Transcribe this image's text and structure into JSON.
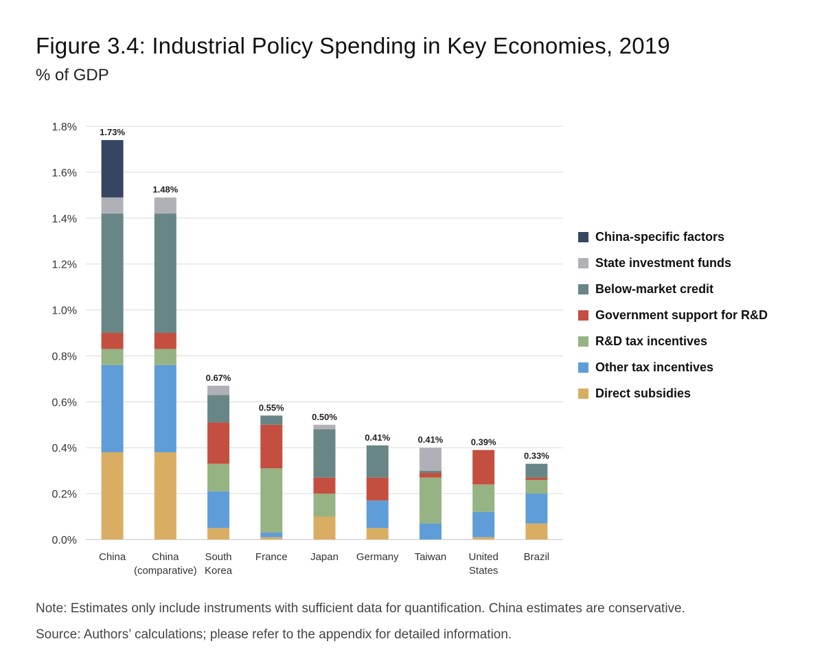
{
  "title": "Figure 3.4: Industrial Policy Spending in Key Economies, 2019",
  "subtitle": "% of GDP",
  "note": "Note: Estimates only include instruments with sufficient data for quantification. China estimates are conservative.",
  "source": "Source: Authors’ calculations; please refer to the appendix for detailed information.",
  "chart_data": {
    "type": "bar",
    "stacked": true,
    "title": "Figure 3.4: Industrial Policy Spending in Key Economies, 2019",
    "ylabel": "% of GDP",
    "xlabel": "",
    "ylim": [
      0,
      1.8
    ],
    "yticks": [
      0.0,
      0.2,
      0.4,
      0.6,
      0.8,
      1.0,
      1.2,
      1.4,
      1.6,
      1.8
    ],
    "ytick_labels": [
      "0.0%",
      "0.2%",
      "0.4%",
      "0.6%",
      "0.8%",
      "1.0%",
      "1.2%",
      "1.4%",
      "1.6%",
      "1.8%"
    ],
    "grid": true,
    "legend_position": "right",
    "categories": [
      [
        "China"
      ],
      [
        "China",
        "(comparative)"
      ],
      [
        "South",
        "Korea"
      ],
      [
        "France"
      ],
      [
        "Japan"
      ],
      [
        "Germany"
      ],
      [
        "Taiwan"
      ],
      [
        "United",
        "States"
      ],
      [
        "Brazil"
      ]
    ],
    "totals": [
      "1.73%",
      "1.48%",
      "0.67%",
      "0.55%",
      "0.50%",
      "0.41%",
      "0.41%",
      "0.39%",
      "0.33%"
    ],
    "series": [
      {
        "name": "Direct subsidies",
        "color": "#d9ae63",
        "values": [
          0.38,
          0.38,
          0.05,
          0.01,
          0.1,
          0.05,
          0.0,
          0.01,
          0.07
        ]
      },
      {
        "name": "Other tax incentives",
        "color": "#5f9dd9",
        "values": [
          0.38,
          0.38,
          0.16,
          0.02,
          0.0,
          0.12,
          0.07,
          0.11,
          0.13
        ]
      },
      {
        "name": "R&D tax incentives",
        "color": "#96b383",
        "values": [
          0.07,
          0.07,
          0.12,
          0.28,
          0.1,
          0.0,
          0.2,
          0.12,
          0.06
        ]
      },
      {
        "name": "Government support for R&D",
        "color": "#c44f40",
        "values": [
          0.07,
          0.07,
          0.18,
          0.19,
          0.07,
          0.1,
          0.02,
          0.15,
          0.01
        ]
      },
      {
        "name": "Below-market credit",
        "color": "#688686",
        "values": [
          0.52,
          0.52,
          0.12,
          0.04,
          0.21,
          0.14,
          0.01,
          0.0,
          0.06
        ]
      },
      {
        "name": "State investment funds",
        "color": "#b0b1b6",
        "values": [
          0.07,
          0.07,
          0.04,
          0.0,
          0.02,
          0.0,
          0.1,
          0.0,
          0.0
        ]
      },
      {
        "name": "China-specific factors",
        "color": "#364562",
        "values": [
          0.25,
          0.0,
          0.0,
          0.0,
          0.0,
          0.0,
          0.0,
          0.0,
          0.0
        ]
      }
    ],
    "legend_order": [
      "China-specific factors",
      "State investment funds",
      "Below-market credit",
      "Government support for R&D",
      "R&D tax incentives",
      "Other tax incentives",
      "Direct subsidies"
    ]
  }
}
